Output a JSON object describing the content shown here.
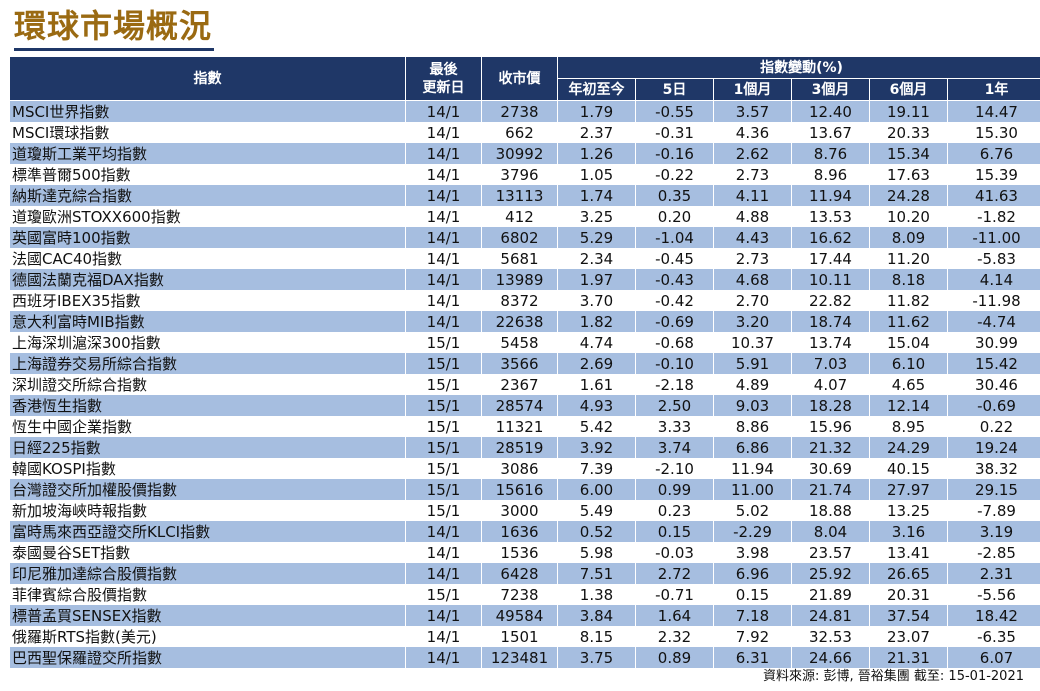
{
  "title": "環球市場概況",
  "header": {
    "index": "指數",
    "last_update_line1": "最後",
    "last_update_line2": "更新日",
    "close": "收市價",
    "change_group": "指數變動(%)",
    "periods": [
      "年初至今",
      "5日",
      "1個月",
      "3個月",
      "6個月",
      "1年"
    ]
  },
  "rows": [
    [
      "MSCI世界指數",
      "14/1",
      "2738",
      "1.79",
      "-0.55",
      "3.57",
      "12.40",
      "19.11",
      "14.47"
    ],
    [
      "MSCI環球指數",
      "14/1",
      "662",
      "2.37",
      "-0.31",
      "4.36",
      "13.67",
      "20.33",
      "15.30"
    ],
    [
      "道瓊斯工業平均指數",
      "14/1",
      "30992",
      "1.26",
      "-0.16",
      "2.62",
      "8.76",
      "15.34",
      "6.76"
    ],
    [
      "標準普爾500指數",
      "14/1",
      "3796",
      "1.05",
      "-0.22",
      "2.73",
      "8.96",
      "17.63",
      "15.39"
    ],
    [
      "納斯達克綜合指數",
      "14/1",
      "13113",
      "1.74",
      "0.35",
      "4.11",
      "11.94",
      "24.28",
      "41.63"
    ],
    [
      "道瓊歐洲STOXX600指數",
      "14/1",
      "412",
      "3.25",
      "0.20",
      "4.88",
      "13.53",
      "10.20",
      "-1.82"
    ],
    [
      "英國富時100指數",
      "14/1",
      "6802",
      "5.29",
      "-1.04",
      "4.43",
      "16.62",
      "8.09",
      "-11.00"
    ],
    [
      "法國CAC40指數",
      "14/1",
      "5681",
      "2.34",
      "-0.45",
      "2.73",
      "17.44",
      "11.20",
      "-5.83"
    ],
    [
      "德國法蘭克福DAX指數",
      "14/1",
      "13989",
      "1.97",
      "-0.43",
      "4.68",
      "10.11",
      "8.18",
      "4.14"
    ],
    [
      "西班牙IBEX35指數",
      "14/1",
      "8372",
      "3.70",
      "-0.42",
      "2.70",
      "22.82",
      "11.82",
      "-11.98"
    ],
    [
      "意大利富時MIB指數",
      "14/1",
      "22638",
      "1.82",
      "-0.69",
      "3.20",
      "18.74",
      "11.62",
      "-4.74"
    ],
    [
      "上海深圳滬深300指數",
      "15/1",
      "5458",
      "4.74",
      "-0.68",
      "10.37",
      "13.74",
      "15.04",
      "30.99"
    ],
    [
      "上海證券交易所綜合指數",
      "15/1",
      "3566",
      "2.69",
      "-0.10",
      "5.91",
      "7.03",
      "6.10",
      "15.42"
    ],
    [
      "深圳證交所綜合指數",
      "15/1",
      "2367",
      "1.61",
      "-2.18",
      "4.89",
      "4.07",
      "4.65",
      "30.46"
    ],
    [
      "香港恆生指數",
      "15/1",
      "28574",
      "4.93",
      "2.50",
      "9.03",
      "18.28",
      "12.14",
      "-0.69"
    ],
    [
      "恆生中國企業指數",
      "15/1",
      "11321",
      "5.42",
      "3.33",
      "8.86",
      "15.96",
      "8.95",
      "0.22"
    ],
    [
      "日經225指數",
      "15/1",
      "28519",
      "3.92",
      "3.74",
      "6.86",
      "21.32",
      "24.29",
      "19.24"
    ],
    [
      "韓國KOSPI指數",
      "15/1",
      "3086",
      "7.39",
      "-2.10",
      "11.94",
      "30.69",
      "40.15",
      "38.32"
    ],
    [
      "台灣證交所加權股價指數",
      "15/1",
      "15616",
      "6.00",
      "0.99",
      "11.00",
      "21.74",
      "27.97",
      "29.15"
    ],
    [
      "新加坡海峽時報指數",
      "15/1",
      "3000",
      "5.49",
      "0.23",
      "5.02",
      "18.88",
      "13.25",
      "-7.89"
    ],
    [
      "富時馬來西亞證交所KLCI指數",
      "14/1",
      "1636",
      "0.52",
      "0.15",
      "-2.29",
      "8.04",
      "3.16",
      "3.19"
    ],
    [
      "泰國曼谷SET指數",
      "14/1",
      "1536",
      "5.98",
      "-0.03",
      "3.98",
      "23.57",
      "13.41",
      "-2.85"
    ],
    [
      "印尼雅加達綜合股價指數",
      "14/1",
      "6428",
      "7.51",
      "2.72",
      "6.96",
      "25.92",
      "26.65",
      "2.31"
    ],
    [
      "菲律賓綜合股價指數",
      "15/1",
      "7238",
      "1.38",
      "-0.71",
      "0.15",
      "21.89",
      "20.31",
      "-5.56"
    ],
    [
      "標普孟買SENSEX指數",
      "14/1",
      "49584",
      "3.84",
      "1.64",
      "7.18",
      "24.81",
      "37.54",
      "18.42"
    ],
    [
      "俄羅斯RTS指數(美元)",
      "14/1",
      "1501",
      "8.15",
      "2.32",
      "7.92",
      "32.53",
      "23.07",
      "-6.35"
    ],
    [
      "巴西聖保羅證交所指數",
      "14/1",
      "123481",
      "3.75",
      "0.89",
      "6.31",
      "24.66",
      "21.31",
      "6.07"
    ]
  ],
  "source": "資料來源: 彭博, 晉裕集團 截至: 15-01-2021",
  "colors": {
    "header_bg": "#1f3767",
    "row_alt": "#a6bee0",
    "title": "#9a6a12"
  }
}
